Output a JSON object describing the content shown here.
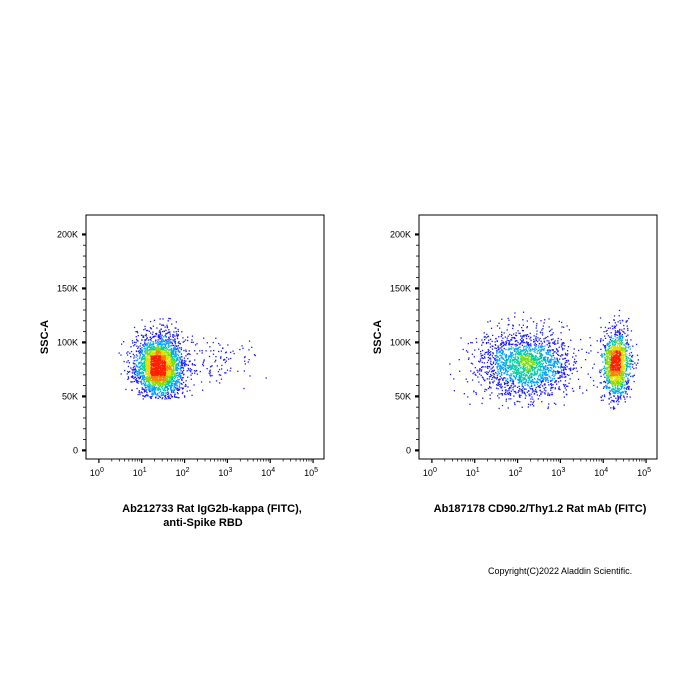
{
  "copyright": "Copyright(C)2022 Aladdin Scientific.",
  "chart_data": [
    {
      "type": "scatter",
      "title": "",
      "ylabel": "SSC-A",
      "xlabel_lines": [
        "Ab212733 Rat IgG2b-kappa (FITC),",
        "anti-Spike RBD"
      ],
      "x_scale": "log",
      "xlim": [
        0.5,
        180000
      ],
      "ylim": [
        -8000,
        218000
      ],
      "x_ticks": [
        {
          "value": 1,
          "base": "10",
          "exp": "0"
        },
        {
          "value": 10,
          "base": "10",
          "exp": "1"
        },
        {
          "value": 100,
          "base": "10",
          "exp": "2"
        },
        {
          "value": 1000,
          "base": "10",
          "exp": "3"
        },
        {
          "value": 10000,
          "base": "10",
          "exp": "4"
        },
        {
          "value": 100000,
          "base": "10",
          "exp": "5"
        }
      ],
      "y_ticks": [
        {
          "value": 0,
          "label": "0"
        },
        {
          "value": 50000,
          "label": "50K"
        },
        {
          "value": 100000,
          "label": "100K"
        },
        {
          "value": 150000,
          "label": "150K"
        },
        {
          "value": 200000,
          "label": "200K"
        }
      ],
      "populations": [
        {
          "x_center": 25,
          "x_spread_decades": 0.28,
          "y_center": 78000,
          "y_spread": 15000,
          "y_min": 48000,
          "y_max": 123000,
          "count": 2600
        },
        {
          "x_center": 650,
          "x_spread_decades": 0.4,
          "y_center": 82000,
          "y_spread": 12000,
          "y_min": 55000,
          "y_max": 108000,
          "count": 110
        }
      ],
      "density_colors": [
        "#1a1aff",
        "#00a0ff",
        "#00d0a0",
        "#80e000",
        "#e0e000",
        "#ff8000",
        "#ff2000"
      ]
    },
    {
      "type": "scatter",
      "title": "",
      "ylabel": "SSC-A",
      "xlabel_lines": [
        "Ab187178 CD90.2/Thy1.2 Rat mAb (FITC)"
      ],
      "x_scale": "log",
      "xlim": [
        0.5,
        180000
      ],
      "ylim": [
        -8000,
        218000
      ],
      "x_ticks": [
        {
          "value": 1,
          "base": "10",
          "exp": "0"
        },
        {
          "value": 10,
          "base": "10",
          "exp": "1"
        },
        {
          "value": 100,
          "base": "10",
          "exp": "2"
        },
        {
          "value": 1000,
          "base": "10",
          "exp": "3"
        },
        {
          "value": 10000,
          "base": "10",
          "exp": "4"
        },
        {
          "value": 100000,
          "base": "10",
          "exp": "5"
        }
      ],
      "y_ticks": [
        {
          "value": 0,
          "label": "0"
        },
        {
          "value": 50000,
          "label": "50K"
        },
        {
          "value": 100000,
          "label": "100K"
        },
        {
          "value": 150000,
          "label": "150K"
        },
        {
          "value": 200000,
          "label": "200K"
        }
      ],
      "populations": [
        {
          "x_center": 150,
          "x_spread_decades": 0.55,
          "y_center": 80000,
          "y_spread": 16000,
          "y_min": 38000,
          "y_max": 132000,
          "count": 1900
        },
        {
          "x_center": 20000,
          "x_spread_decades": 0.16,
          "y_center": 80000,
          "y_spread": 16000,
          "y_min": 38000,
          "y_max": 133000,
          "count": 1300
        }
      ],
      "density_colors": [
        "#1a1aff",
        "#00a0ff",
        "#00d0a0",
        "#80e000",
        "#e0e000",
        "#ff8000",
        "#ff2000"
      ]
    }
  ]
}
